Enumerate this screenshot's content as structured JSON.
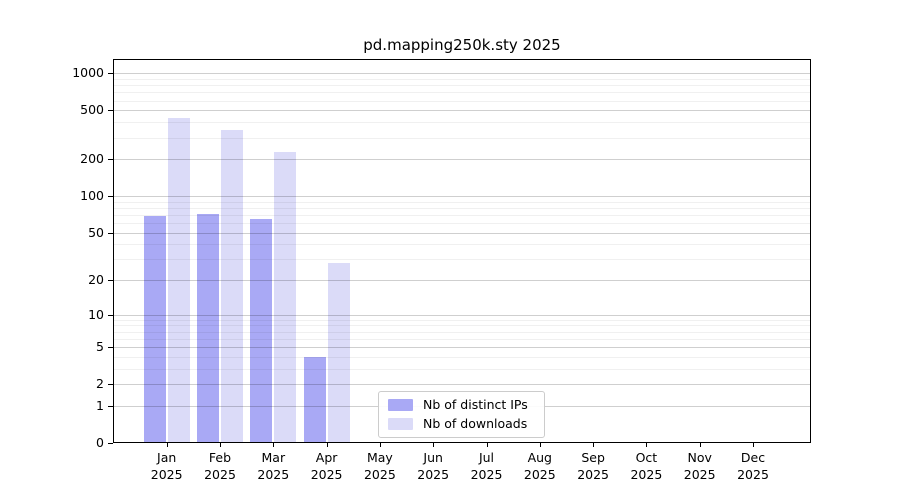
{
  "chart_data": {
    "type": "bar",
    "title": "pd.mapping250k.sty 2025",
    "months": [
      "Jan",
      "Feb",
      "Mar",
      "Apr",
      "May",
      "Jun",
      "Jul",
      "Aug",
      "Sep",
      "Oct",
      "Nov",
      "Dec"
    ],
    "year": "2025",
    "categories": [
      "Jan 2025",
      "Feb 2025",
      "Mar 2025",
      "Apr 2025",
      "May 2025",
      "Jun 2025",
      "Jul 2025",
      "Aug 2025",
      "Sep 2025",
      "Oct 2025",
      "Nov 2025",
      "Dec 2025"
    ],
    "series": [
      {
        "name": "Nb of distinct IPs",
        "color": "#a9a9f5",
        "values": [
          69,
          71,
          65,
          4,
          0,
          0,
          0,
          0,
          0,
          0,
          0,
          0
        ]
      },
      {
        "name": "Nb of downloads",
        "color": "#dbdbf8",
        "values": [
          435,
          348,
          230,
          28,
          0,
          0,
          0,
          0,
          0,
          0,
          0,
          0
        ]
      }
    ],
    "y_ticks": [
      0,
      1,
      2,
      5,
      10,
      20,
      50,
      100,
      200,
      500,
      1000
    ],
    "y_minor_ticks": [
      3,
      4,
      6,
      7,
      8,
      9,
      30,
      40,
      60,
      70,
      80,
      90,
      300,
      400,
      600,
      700,
      800,
      900
    ],
    "y_scale": "log10(1+v)",
    "ylim": [
      0,
      1280
    ],
    "grid": true,
    "legend_position": "bottom-center"
  },
  "colors": {
    "background": "#ffffff",
    "axis": "#000000",
    "grid_major": "rgba(0,0,0,0.19)",
    "grid_minor": "rgba(0,0,0,0.06)",
    "legend_border": "#cccccc"
  }
}
